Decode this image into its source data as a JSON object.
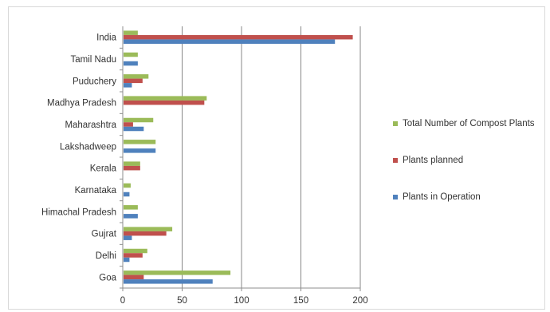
{
  "chart_data": {
    "type": "bar",
    "orientation": "horizontal",
    "title": "",
    "xlabel": "",
    "ylabel": "",
    "categories": [
      "India",
      "Tamil Nadu",
      "Puduchery",
      "Madhya Pradesh",
      "Maharashtra",
      "Lakshadweep",
      "Kerala",
      "Karnataka",
      "Himachal Pradesh",
      "Gujrat",
      "Delhi",
      "Goa"
    ],
    "series": [
      {
        "name": "Total Number of Compost Plants",
        "color": "#9bbb59",
        "values": [
          12,
          12,
          21,
          70,
          25,
          27,
          14,
          6,
          12,
          41,
          20,
          90
        ]
      },
      {
        "name": "Plants planned",
        "color": "#c0504d",
        "values": [
          193,
          0,
          16,
          68,
          8,
          0,
          14,
          0,
          0,
          36,
          16,
          17
        ]
      },
      {
        "name": "Plants in Operation",
        "color": "#4f81bd",
        "values": [
          178,
          12,
          7,
          0,
          17,
          27,
          0,
          5,
          12,
          7,
          5,
          75
        ]
      }
    ],
    "xlim": [
      0,
      200
    ],
    "xticks": [
      0,
      50,
      100,
      150,
      200
    ],
    "grid": "vertical major gridlines",
    "legend_position": "right"
  }
}
